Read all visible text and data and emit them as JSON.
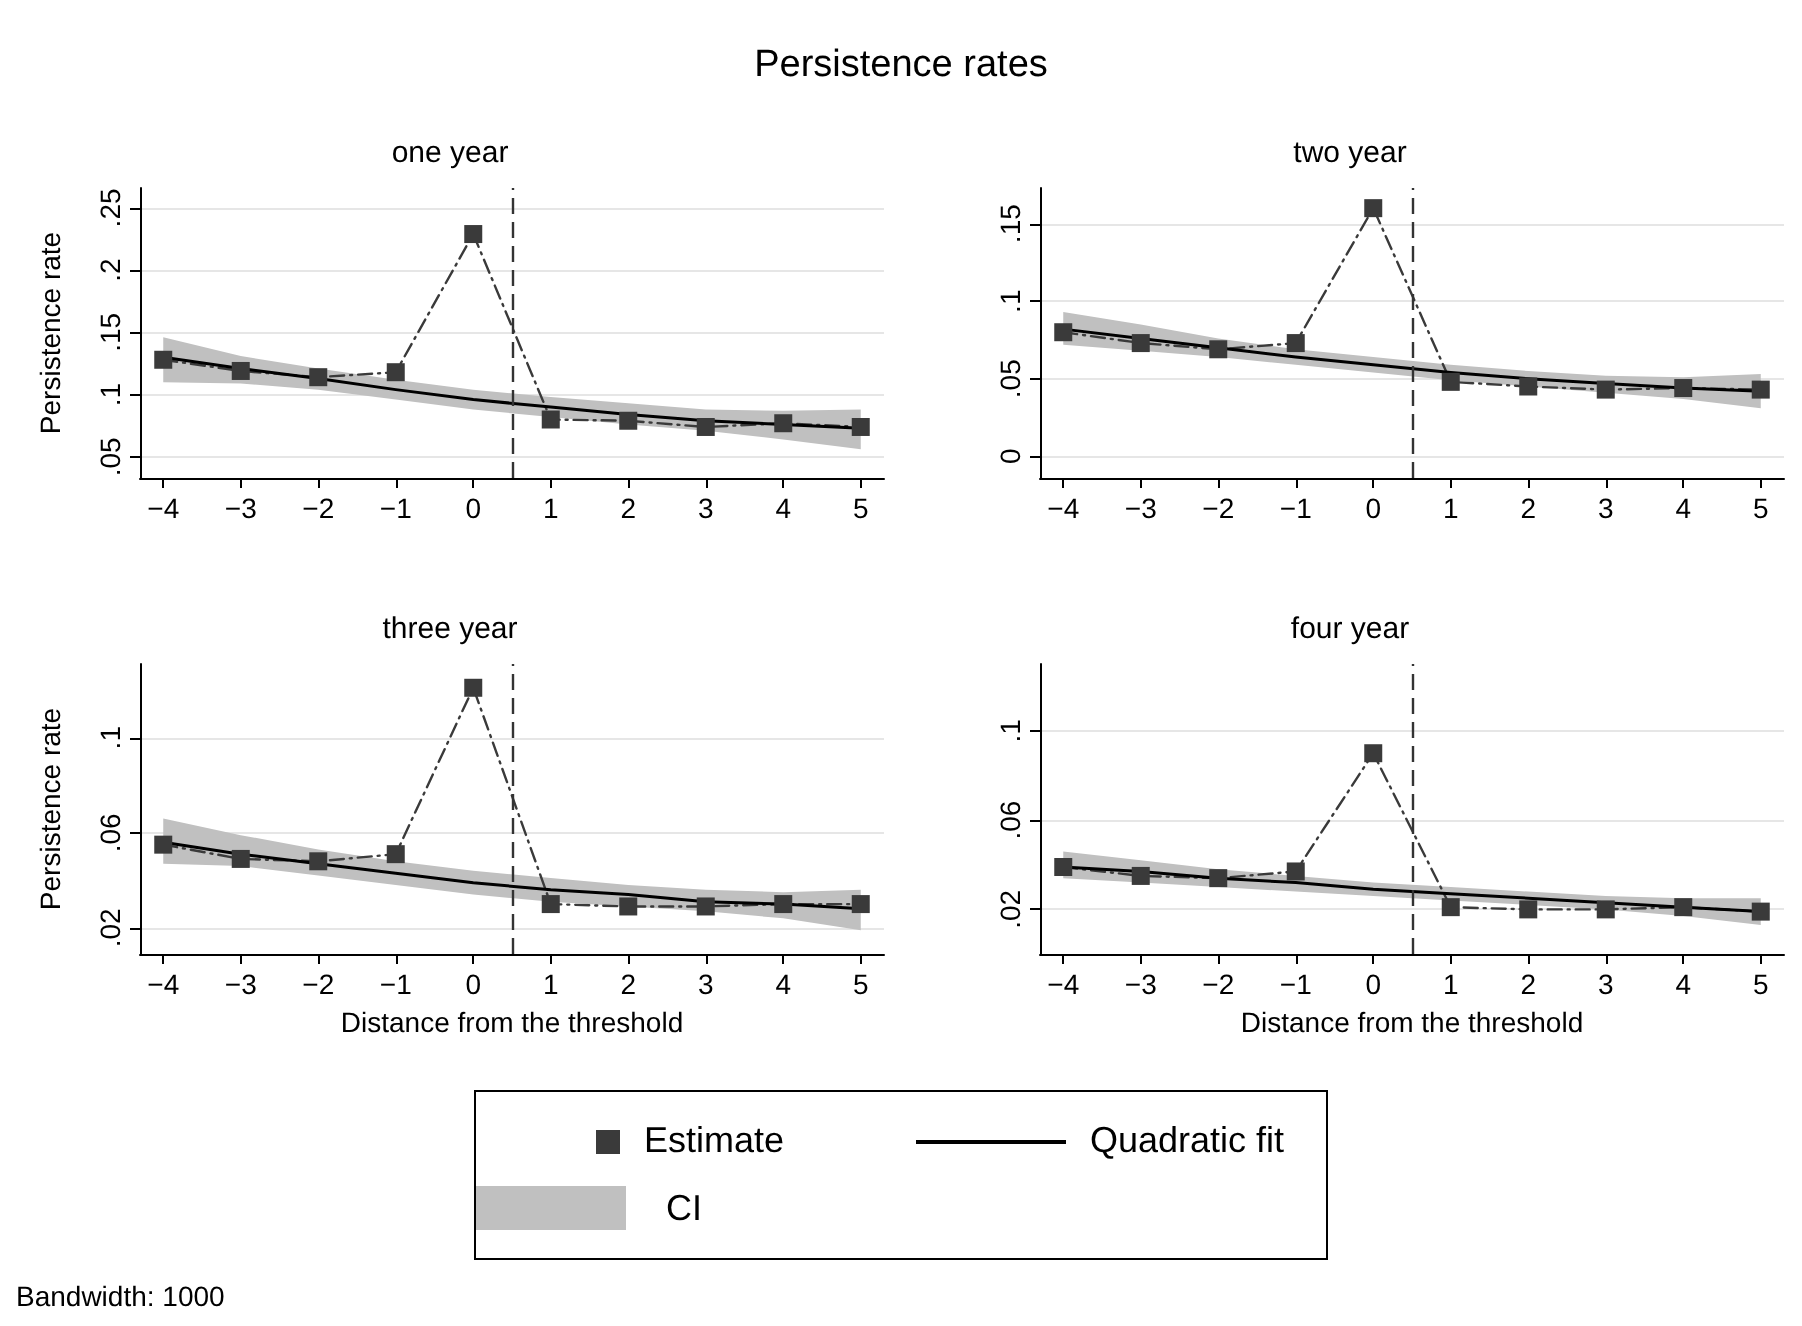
{
  "chart_data": [
    {
      "type": "line",
      "title": "one year",
      "ylabel": "Persistence rate",
      "annotations": [
        "Persistence rates"
      ],
      "legend": "bottom",
      "grid": "y",
      "x": [
        -4,
        -3,
        -2,
        -1,
        0,
        1,
        2,
        3,
        4,
        5
      ],
      "xlim": [
        -4.3,
        5.3
      ],
      "xticks": [
        -4,
        -3,
        -2,
        -1,
        0,
        1,
        2,
        3,
        4,
        5
      ],
      "ylim": [
        0.033,
        0.266
      ],
      "yticks": [
        {
          "value": 0.05,
          "label": ".05"
        },
        {
          "value": 0.1,
          "label": ".1"
        },
        {
          "value": 0.15,
          "label": ".15"
        },
        {
          "value": 0.2,
          "label": ".2"
        },
        {
          "value": 0.25,
          "label": ".25"
        }
      ],
      "ref_lines": [
        {
          "axis": "x",
          "value": 0.5,
          "label": null,
          "color": "#333333",
          "line_style": "dashed"
        }
      ],
      "series": [
        {
          "name": "Estimate",
          "color": "#3a3a3a",
          "marker": "square",
          "line_style": "dashed",
          "values": [
            0.128,
            0.119,
            0.114,
            0.118,
            0.229,
            0.08,
            0.079,
            0.074,
            0.077,
            0.074
          ]
        },
        {
          "name": "Quadratic fit",
          "color": "#000000",
          "marker": "none",
          "line_style": "solid",
          "values": [
            0.13,
            0.121,
            0.113,
            0.104,
            0.096,
            0.09,
            0.084,
            0.079,
            0.076,
            0.073
          ]
        },
        {
          "name": "CI",
          "type": "area",
          "color": "#c0c0c0",
          "values": [
            null,
            null,
            null,
            null,
            null,
            null,
            null,
            null,
            null,
            null
          ],
          "lower": [
            0.11,
            0.109,
            0.104,
            0.096,
            0.088,
            0.082,
            0.076,
            0.071,
            0.064,
            0.056
          ],
          "upper": [
            0.146,
            0.131,
            0.121,
            0.112,
            0.104,
            0.098,
            0.093,
            0.088,
            0.087,
            0.088
          ]
        }
      ]
    },
    {
      "type": "line",
      "title": "two year",
      "grid": "y",
      "x": [
        -4,
        -3,
        -2,
        -1,
        0,
        1,
        2,
        3,
        4,
        5
      ],
      "xlim": [
        -4.3,
        5.3
      ],
      "xticks": [
        -4,
        -3,
        -2,
        -1,
        0,
        1,
        2,
        3,
        4,
        5
      ],
      "ylim": [
        -0.014,
        0.173
      ],
      "yticks": [
        0,
        {
          "value": 0.05,
          "label": ".05"
        },
        {
          "value": 0.1,
          "label": ".1"
        },
        {
          "value": 0.15,
          "label": ".15"
        }
      ],
      "ref_lines": [
        {
          "axis": "x",
          "value": 0.5,
          "label": null,
          "color": "#333333",
          "line_style": "dashed"
        }
      ],
      "series": [
        {
          "color": "#3a3a3a",
          "marker": "square",
          "line_style": "dashed",
          "values": [
            0.08,
            0.073,
            0.069,
            0.073,
            0.16,
            0.048,
            0.045,
            0.043,
            0.044,
            0.043
          ]
        },
        {
          "color": "#000000",
          "marker": "none",
          "line_style": "solid",
          "values": [
            0.082,
            0.076,
            0.07,
            0.064,
            0.059,
            0.054,
            0.05,
            0.047,
            0.044,
            0.042
          ]
        },
        {
          "type": "area",
          "color": "#c0c0c0",
          "values": [
            null,
            null,
            null,
            null,
            null,
            null,
            null,
            null,
            null,
            null
          ],
          "lower": [
            0.072,
            0.068,
            0.064,
            0.059,
            0.054,
            0.049,
            0.045,
            0.041,
            0.037,
            0.031
          ],
          "upper": [
            0.093,
            0.085,
            0.076,
            0.069,
            0.064,
            0.059,
            0.055,
            0.052,
            0.051,
            0.053
          ]
        }
      ]
    },
    {
      "type": "line",
      "title": "three year",
      "ylabel": "Persistence rate",
      "xlabel": "Distance from the threshold",
      "grid": "y",
      "x": [
        -4,
        -3,
        -2,
        -1,
        0,
        1,
        2,
        3,
        4,
        5
      ],
      "xlim": [
        -4.3,
        5.3
      ],
      "xticks": [
        -4,
        -3,
        -2,
        -1,
        0,
        1,
        2,
        3,
        4,
        5
      ],
      "ylim": [
        0.009,
        0.131
      ],
      "yticks": [
        {
          "value": 0.02,
          "label": ".02"
        },
        {
          "value": 0.06,
          "label": ".06"
        },
        {
          "value": 0.1,
          "label": ".1"
        }
      ],
      "ref_lines": [
        {
          "axis": "x",
          "value": 0.5,
          "label": null,
          "color": "#333333",
          "line_style": "dashed"
        }
      ],
      "series": [
        {
          "color": "#3a3a3a",
          "marker": "square",
          "line_style": "dashed",
          "values": [
            0.055,
            0.049,
            0.048,
            0.051,
            0.121,
            0.03,
            0.029,
            0.029,
            0.03,
            0.03
          ]
        },
        {
          "color": "#000000",
          "marker": "none",
          "line_style": "solid",
          "values": [
            0.056,
            0.051,
            0.047,
            0.043,
            0.039,
            0.036,
            0.034,
            0.031,
            0.03,
            0.028
          ]
        },
        {
          "type": "area",
          "color": "#c0c0c0",
          "values": [
            null,
            null,
            null,
            null,
            null,
            null,
            null,
            null,
            null,
            null
          ],
          "lower": [
            0.047,
            0.046,
            0.042,
            0.038,
            0.034,
            0.031,
            0.029,
            0.027,
            0.024,
            0.019
          ],
          "upper": [
            0.066,
            0.059,
            0.053,
            0.048,
            0.044,
            0.041,
            0.038,
            0.036,
            0.035,
            0.036
          ]
        }
      ]
    },
    {
      "type": "line",
      "title": "four year",
      "xlabel": "Distance from the threshold",
      "annotations": [
        "Bandwidth: 1000"
      ],
      "grid": "y",
      "x": [
        -4,
        -3,
        -2,
        -1,
        0,
        1,
        2,
        3,
        4,
        5
      ],
      "xlim": [
        -4.3,
        5.3
      ],
      "xticks": [
        -4,
        -3,
        -2,
        -1,
        0,
        1,
        2,
        3,
        4,
        5
      ],
      "ylim": [
        0,
        0.13
      ],
      "yticks": [
        {
          "value": 0.02,
          "label": ".02"
        },
        {
          "value": 0.06,
          "label": ".06"
        },
        {
          "value": 0.1,
          "label": ".1"
        }
      ],
      "ref_lines": [
        {
          "axis": "x",
          "value": 0.5,
          "label": null,
          "color": "#333333",
          "line_style": "dashed"
        }
      ],
      "series": [
        {
          "color": "#3a3a3a",
          "marker": "square",
          "line_style": "dashed",
          "values": [
            0.039,
            0.035,
            0.034,
            0.037,
            0.09,
            0.021,
            0.02,
            0.02,
            0.021,
            0.019
          ]
        },
        {
          "color": "#000000",
          "marker": "none",
          "line_style": "solid",
          "values": [
            0.039,
            0.037,
            0.034,
            0.032,
            0.029,
            0.027,
            0.025,
            0.023,
            0.021,
            0.019
          ]
        },
        {
          "type": "area",
          "color": "#c0c0c0",
          "values": [
            null,
            null,
            null,
            null,
            null,
            null,
            null,
            null,
            null,
            null
          ],
          "lower": [
            0.034,
            0.032,
            0.03,
            0.028,
            0.026,
            0.024,
            0.022,
            0.02,
            0.017,
            0.013
          ],
          "upper": [
            0.046,
            0.042,
            0.038,
            0.035,
            0.032,
            0.03,
            0.028,
            0.026,
            0.025,
            0.025
          ]
        }
      ]
    }
  ]
}
